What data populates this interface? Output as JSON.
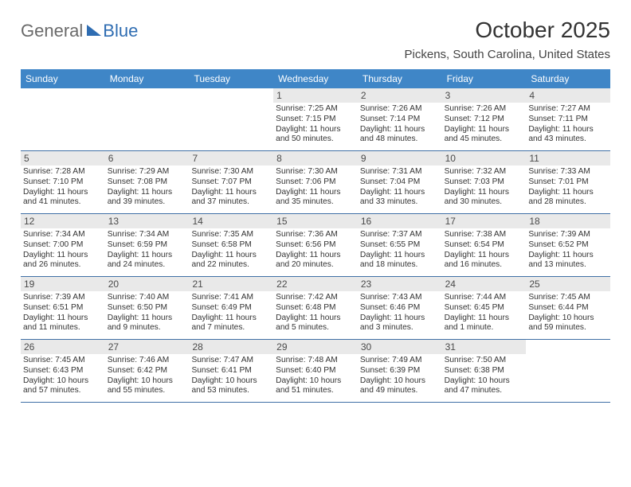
{
  "logo": {
    "text1": "General",
    "text2": "Blue"
  },
  "title": "October 2025",
  "subtitle": "Pickens, South Carolina, United States",
  "dayHeaders": [
    "Sunday",
    "Monday",
    "Tuesday",
    "Wednesday",
    "Thursday",
    "Friday",
    "Saturday"
  ],
  "colors": {
    "header_bg": "#3f86c7",
    "header_text": "#ffffff",
    "row_border": "#3f6fa5",
    "daynum_bg": "#e9e9e9",
    "text": "#333333",
    "logo_gray": "#6a6a6a",
    "logo_blue": "#2f6db2"
  },
  "weeks": [
    [
      null,
      null,
      null,
      {
        "n": "1",
        "sunrise": "7:25 AM",
        "sunset": "7:15 PM",
        "daylight": "11 hours and 50 minutes."
      },
      {
        "n": "2",
        "sunrise": "7:26 AM",
        "sunset": "7:14 PM",
        "daylight": "11 hours and 48 minutes."
      },
      {
        "n": "3",
        "sunrise": "7:26 AM",
        "sunset": "7:12 PM",
        "daylight": "11 hours and 45 minutes."
      },
      {
        "n": "4",
        "sunrise": "7:27 AM",
        "sunset": "7:11 PM",
        "daylight": "11 hours and 43 minutes."
      }
    ],
    [
      {
        "n": "5",
        "sunrise": "7:28 AM",
        "sunset": "7:10 PM",
        "daylight": "11 hours and 41 minutes."
      },
      {
        "n": "6",
        "sunrise": "7:29 AM",
        "sunset": "7:08 PM",
        "daylight": "11 hours and 39 minutes."
      },
      {
        "n": "7",
        "sunrise": "7:30 AM",
        "sunset": "7:07 PM",
        "daylight": "11 hours and 37 minutes."
      },
      {
        "n": "8",
        "sunrise": "7:30 AM",
        "sunset": "7:06 PM",
        "daylight": "11 hours and 35 minutes."
      },
      {
        "n": "9",
        "sunrise": "7:31 AM",
        "sunset": "7:04 PM",
        "daylight": "11 hours and 33 minutes."
      },
      {
        "n": "10",
        "sunrise": "7:32 AM",
        "sunset": "7:03 PM",
        "daylight": "11 hours and 30 minutes."
      },
      {
        "n": "11",
        "sunrise": "7:33 AM",
        "sunset": "7:01 PM",
        "daylight": "11 hours and 28 minutes."
      }
    ],
    [
      {
        "n": "12",
        "sunrise": "7:34 AM",
        "sunset": "7:00 PM",
        "daylight": "11 hours and 26 minutes."
      },
      {
        "n": "13",
        "sunrise": "7:34 AM",
        "sunset": "6:59 PM",
        "daylight": "11 hours and 24 minutes."
      },
      {
        "n": "14",
        "sunrise": "7:35 AM",
        "sunset": "6:58 PM",
        "daylight": "11 hours and 22 minutes."
      },
      {
        "n": "15",
        "sunrise": "7:36 AM",
        "sunset": "6:56 PM",
        "daylight": "11 hours and 20 minutes."
      },
      {
        "n": "16",
        "sunrise": "7:37 AM",
        "sunset": "6:55 PM",
        "daylight": "11 hours and 18 minutes."
      },
      {
        "n": "17",
        "sunrise": "7:38 AM",
        "sunset": "6:54 PM",
        "daylight": "11 hours and 16 minutes."
      },
      {
        "n": "18",
        "sunrise": "7:39 AM",
        "sunset": "6:52 PM",
        "daylight": "11 hours and 13 minutes."
      }
    ],
    [
      {
        "n": "19",
        "sunrise": "7:39 AM",
        "sunset": "6:51 PM",
        "daylight": "11 hours and 11 minutes."
      },
      {
        "n": "20",
        "sunrise": "7:40 AM",
        "sunset": "6:50 PM",
        "daylight": "11 hours and 9 minutes."
      },
      {
        "n": "21",
        "sunrise": "7:41 AM",
        "sunset": "6:49 PM",
        "daylight": "11 hours and 7 minutes."
      },
      {
        "n": "22",
        "sunrise": "7:42 AM",
        "sunset": "6:48 PM",
        "daylight": "11 hours and 5 minutes."
      },
      {
        "n": "23",
        "sunrise": "7:43 AM",
        "sunset": "6:46 PM",
        "daylight": "11 hours and 3 minutes."
      },
      {
        "n": "24",
        "sunrise": "7:44 AM",
        "sunset": "6:45 PM",
        "daylight": "11 hours and 1 minute."
      },
      {
        "n": "25",
        "sunrise": "7:45 AM",
        "sunset": "6:44 PM",
        "daylight": "10 hours and 59 minutes."
      }
    ],
    [
      {
        "n": "26",
        "sunrise": "7:45 AM",
        "sunset": "6:43 PM",
        "daylight": "10 hours and 57 minutes."
      },
      {
        "n": "27",
        "sunrise": "7:46 AM",
        "sunset": "6:42 PM",
        "daylight": "10 hours and 55 minutes."
      },
      {
        "n": "28",
        "sunrise": "7:47 AM",
        "sunset": "6:41 PM",
        "daylight": "10 hours and 53 minutes."
      },
      {
        "n": "29",
        "sunrise": "7:48 AM",
        "sunset": "6:40 PM",
        "daylight": "10 hours and 51 minutes."
      },
      {
        "n": "30",
        "sunrise": "7:49 AM",
        "sunset": "6:39 PM",
        "daylight": "10 hours and 49 minutes."
      },
      {
        "n": "31",
        "sunrise": "7:50 AM",
        "sunset": "6:38 PM",
        "daylight": "10 hours and 47 minutes."
      },
      null
    ]
  ],
  "labels": {
    "sunrise": "Sunrise: ",
    "sunset": "Sunset: ",
    "daylight": "Daylight: "
  }
}
